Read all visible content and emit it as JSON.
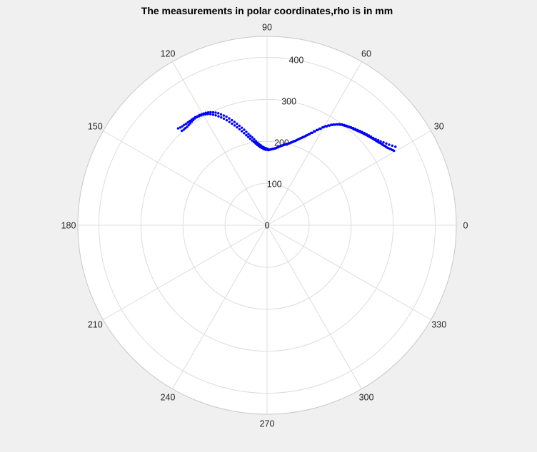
{
  "chart_data": {
    "type": "scatter",
    "coordinate_system": "polar",
    "title": "The measurements in polar coordinates,rho is in mm",
    "theta_ticks": [
      "0",
      "30",
      "60",
      "90",
      "120",
      "150",
      "180",
      "210",
      "240",
      "270",
      "300",
      "330"
    ],
    "theta_tick_degrees": [
      0,
      30,
      60,
      90,
      120,
      150,
      180,
      210,
      240,
      270,
      300,
      330
    ],
    "rho_ticks": [
      "0",
      "100",
      "200",
      "300",
      "400"
    ],
    "rho_tick_values": [
      0,
      100,
      200,
      300,
      400
    ],
    "rlim": [
      0,
      450
    ],
    "grid": true,
    "colors": {
      "background": "#f0f0f0",
      "plot_area": "#ffffff",
      "grid": "#dcdcdc",
      "points": "#0000ff",
      "outer_ring": "#c8c8c8"
    },
    "series": [
      {
        "marker": "dot",
        "points": [
          [
            30.5,
            350
          ],
          [
            31.0,
            348
          ],
          [
            31.5,
            346
          ],
          [
            32.0,
            344
          ],
          [
            32.5,
            342
          ],
          [
            33.0,
            340
          ],
          [
            33.5,
            339
          ],
          [
            34.0,
            338
          ],
          [
            34.5,
            336
          ],
          [
            35.0,
            335
          ],
          [
            35.5,
            334
          ],
          [
            36.0,
            333
          ],
          [
            36.5,
            331
          ],
          [
            37.0,
            330
          ],
          [
            37.5,
            329
          ],
          [
            38.0,
            328
          ],
          [
            38.5,
            327
          ],
          [
            39.0,
            326
          ],
          [
            39.5,
            325
          ],
          [
            40.0,
            324
          ],
          [
            40.5,
            323
          ],
          [
            41.0,
            322
          ],
          [
            41.5,
            321
          ],
          [
            42.0,
            320
          ],
          [
            42.5,
            319
          ],
          [
            43.0,
            318
          ],
          [
            43.5,
            317
          ],
          [
            44.0,
            316
          ],
          [
            44.5,
            315
          ],
          [
            45.0,
            314
          ],
          [
            45.5,
            313
          ],
          [
            46.0,
            312
          ],
          [
            46.5,
            311
          ],
          [
            47.0,
            310
          ],
          [
            47.5,
            309
          ],
          [
            48.0,
            308
          ],
          [
            48.5,
            308
          ],
          [
            49.0,
            307
          ],
          [
            49.5,
            306
          ],
          [
            50.0,
            305
          ],
          [
            50.5,
            304
          ],
          [
            51.0,
            303
          ],
          [
            51.5,
            302
          ],
          [
            52.0,
            301
          ],
          [
            52.5,
            300
          ],
          [
            53.0,
            299
          ],
          [
            53.5,
            298
          ],
          [
            54.0,
            296
          ],
          [
            55.0,
            293
          ],
          [
            56.0,
            289
          ],
          [
            57.0,
            285
          ],
          [
            58.0,
            280
          ],
          [
            59.0,
            275
          ],
          [
            60.0,
            270
          ],
          [
            61.0,
            263
          ],
          [
            62.0,
            257
          ],
          [
            63.0,
            251
          ],
          [
            64.0,
            245
          ],
          [
            65.0,
            240
          ],
          [
            66.0,
            235
          ],
          [
            67.0,
            230
          ],
          [
            68.0,
            226
          ],
          [
            69.0,
            222
          ],
          [
            70.0,
            218
          ],
          [
            71.0,
            214
          ],
          [
            72.0,
            211
          ],
          [
            73.0,
            208
          ],
          [
            74.0,
            205
          ],
          [
            75.0,
            202
          ],
          [
            76.0,
            200
          ],
          [
            77.0,
            198
          ],
          [
            78.0,
            196
          ],
          [
            79.0,
            194
          ],
          [
            80.0,
            192
          ],
          [
            81.0,
            190
          ],
          [
            82.0,
            188
          ],
          [
            83.0,
            186
          ],
          [
            84.0,
            184
          ],
          [
            85.0,
            183
          ],
          [
            86.0,
            182
          ],
          [
            87.0,
            181
          ],
          [
            88.0,
            180
          ],
          [
            89.0,
            179
          ],
          [
            90.0,
            180
          ],
          [
            91.0,
            180
          ],
          [
            92.0,
            181
          ],
          [
            93.0,
            183
          ],
          [
            94.0,
            185
          ],
          [
            95.0,
            187
          ],
          [
            96.0,
            190
          ],
          [
            97.0,
            193
          ],
          [
            98.0,
            197
          ],
          [
            99.0,
            201
          ],
          [
            100.0,
            205
          ],
          [
            101.0,
            210
          ],
          [
            102.0,
            215
          ],
          [
            103.0,
            220
          ],
          [
            104.0,
            226
          ],
          [
            105.0,
            232
          ],
          [
            106.0,
            238
          ],
          [
            107.0,
            244
          ],
          [
            108.0,
            250
          ],
          [
            109.0,
            256
          ],
          [
            110.0,
            262
          ],
          [
            111.0,
            268
          ],
          [
            112.0,
            274
          ],
          [
            113.0,
            279
          ],
          [
            114.0,
            284
          ],
          [
            115.0,
            289
          ],
          [
            116.0,
            293
          ],
          [
            117.0,
            297
          ],
          [
            118.0,
            300
          ],
          [
            119.0,
            302
          ],
          [
            120.0,
            304
          ],
          [
            121.0,
            305
          ],
          [
            122.0,
            306
          ],
          [
            123.0,
            307
          ],
          [
            124.0,
            307
          ],
          [
            125.0,
            306
          ],
          [
            126.0,
            305
          ],
          [
            127.0,
            304
          ],
          [
            128.0,
            303
          ],
          [
            129.0,
            302
          ],
          [
            130.0,
            302
          ],
          [
            131.0,
            302
          ],
          [
            132.0,
            303
          ],
          [
            31.5,
            358
          ],
          [
            32.5,
            353
          ],
          [
            33.5,
            348
          ],
          [
            34.5,
            344
          ],
          [
            35.5,
            340
          ],
          [
            36.5,
            336
          ],
          [
            37.5,
            333
          ],
          [
            38.5,
            330
          ],
          [
            39.5,
            327
          ],
          [
            40.5,
            325
          ],
          [
            41.5,
            323
          ],
          [
            42.5,
            321
          ],
          [
            43.5,
            319
          ],
          [
            44.5,
            317
          ],
          [
            45.5,
            315
          ],
          [
            46.5,
            313
          ],
          [
            47.5,
            311
          ],
          [
            48.5,
            309
          ],
          [
            49.5,
            307
          ],
          [
            50.5,
            305
          ],
          [
            51.5,
            303
          ],
          [
            52.5,
            301
          ],
          [
            53.5,
            299
          ],
          [
            54.5,
            296
          ],
          [
            55.5,
            292
          ],
          [
            56.5,
            288
          ],
          [
            57.5,
            284
          ],
          [
            58.5,
            279
          ],
          [
            59.5,
            274
          ],
          [
            60.5,
            268
          ],
          [
            61.5,
            262
          ],
          [
            62.5,
            256
          ],
          [
            63.5,
            250
          ],
          [
            64.5,
            244
          ],
          [
            65.5,
            238
          ],
          [
            66.5,
            233
          ],
          [
            67.5,
            228
          ],
          [
            68.5,
            224
          ],
          [
            69.5,
            220
          ],
          [
            70.5,
            216
          ],
          [
            71.5,
            212
          ],
          [
            72.5,
            209
          ],
          [
            73.5,
            206
          ],
          [
            74.5,
            203
          ],
          [
            75.5,
            201
          ],
          [
            76.5,
            199
          ],
          [
            77.5,
            197
          ],
          [
            78.5,
            195
          ],
          [
            79.5,
            193
          ],
          [
            80.5,
            191
          ],
          [
            81.5,
            189
          ],
          [
            82.5,
            187
          ],
          [
            83.5,
            185
          ],
          [
            84.5,
            184
          ],
          [
            85.5,
            183
          ],
          [
            86.5,
            182
          ],
          [
            87.5,
            181
          ],
          [
            88.5,
            180
          ],
          [
            89.5,
            182
          ],
          [
            90.5,
            183
          ],
          [
            91.5,
            184
          ],
          [
            92.5,
            186
          ],
          [
            93.5,
            188
          ],
          [
            94.5,
            191
          ],
          [
            95.5,
            194
          ],
          [
            96.5,
            198
          ],
          [
            97.5,
            202
          ],
          [
            98.5,
            207
          ],
          [
            99.5,
            212
          ],
          [
            100.5,
            217
          ],
          [
            101.5,
            222
          ],
          [
            102.5,
            228
          ],
          [
            103.5,
            234
          ],
          [
            104.5,
            240
          ],
          [
            105.5,
            246
          ],
          [
            106.5,
            252
          ],
          [
            107.5,
            258
          ],
          [
            108.5,
            264
          ],
          [
            109.5,
            270
          ],
          [
            110.5,
            276
          ],
          [
            111.5,
            281
          ],
          [
            112.5,
            286
          ],
          [
            113.5,
            291
          ],
          [
            114.5,
            295
          ],
          [
            115.5,
            298
          ],
          [
            116.5,
            301
          ],
          [
            117.5,
            303
          ],
          [
            118.5,
            305
          ],
          [
            119.5,
            306
          ],
          [
            120.5,
            307
          ],
          [
            121.5,
            308
          ],
          [
            122.5,
            308
          ],
          [
            123.5,
            309
          ],
          [
            124.5,
            309
          ],
          [
            125.5,
            309
          ],
          [
            126.5,
            309
          ],
          [
            127.5,
            309
          ],
          [
            128.5,
            309
          ],
          [
            129.5,
            310
          ],
          [
            130.5,
            310
          ],
          [
            131.5,
            311
          ],
          [
            132.5,
            313
          ]
        ]
      }
    ]
  }
}
